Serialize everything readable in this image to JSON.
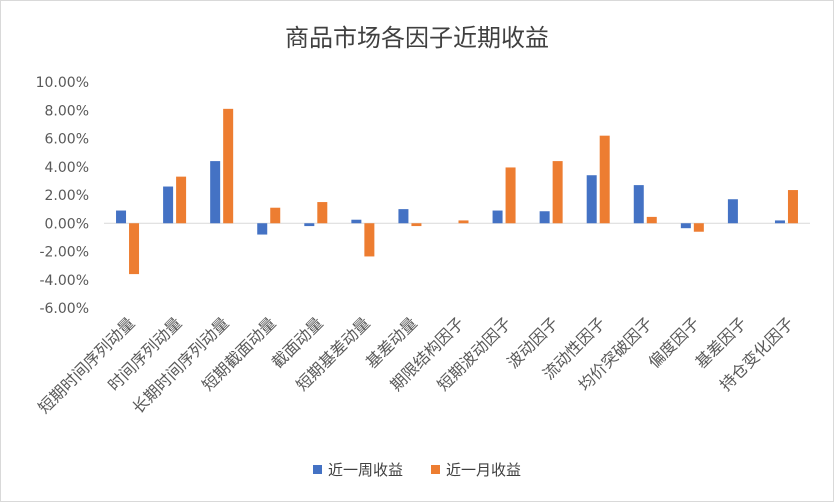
{
  "chart_data": {
    "type": "bar",
    "title": "商品市场各因子近期收益",
    "categories": [
      "短期时间序列动量",
      "时间序列动量",
      "长期时间序列动量",
      "短期截面动量",
      "截面动量",
      "短期基差动量",
      "基差动量",
      "期限结构因子",
      "短期波动因子",
      "波动因子",
      "流动性因子",
      "均价突破因子",
      "偏度因子",
      "基差因子",
      "持仓变化因子"
    ],
    "series": [
      {
        "name": "近一周收益",
        "color": "#4472C4",
        "values": [
          0.9,
          2.6,
          4.4,
          -0.8,
          -0.2,
          0.25,
          1.0,
          0.0,
          0.9,
          0.85,
          3.4,
          2.7,
          -0.35,
          1.7,
          0.2
        ]
      },
      {
        "name": "近一月收益",
        "color": "#ED7D31",
        "values": [
          -3.6,
          3.3,
          8.1,
          1.1,
          1.5,
          -2.35,
          -0.2,
          0.2,
          3.95,
          4.4,
          6.2,
          0.45,
          -0.6,
          0.0,
          2.35
        ]
      }
    ],
    "ylim": [
      -6,
      10
    ],
    "yticks": [
      "-6.00%",
      "-4.00%",
      "-2.00%",
      "0.00%",
      "2.00%",
      "4.00%",
      "6.00%",
      "8.00%",
      "10.00%"
    ],
    "legend_position": "bottom",
    "grid": false
  }
}
